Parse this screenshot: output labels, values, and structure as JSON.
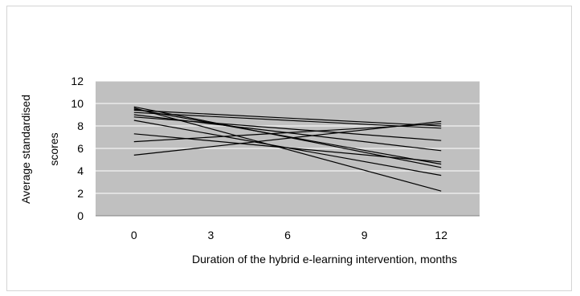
{
  "chart_data": {
    "type": "line",
    "title": "",
    "xlabel": "Duration of the hybrid e-learning intervention, months",
    "ylabel_lines": [
      "Average standardised",
      "scores"
    ],
    "x_ticks": [
      0,
      3,
      6,
      9,
      12
    ],
    "y_ticks": [
      0,
      2,
      4,
      6,
      8,
      10,
      12
    ],
    "xlim": [
      -1.5,
      13.5
    ],
    "ylim": [
      0,
      12
    ],
    "grid": "horizontal",
    "legend": "none",
    "colors": {
      "plot_bg": "#c0c0c0",
      "grid": "#ffffff",
      "line": "#000000"
    },
    "series": [
      {
        "x": [
          0,
          12
        ],
        "y": [
          9.7,
          4.3
        ]
      },
      {
        "x": [
          0,
          12
        ],
        "y": [
          9.6,
          2.2
        ]
      },
      {
        "x": [
          0,
          12
        ],
        "y": [
          9.5,
          4.6
        ]
      },
      {
        "x": [
          0,
          12
        ],
        "y": [
          9.4,
          8.0
        ]
      },
      {
        "x": [
          0,
          12
        ],
        "y": [
          9.2,
          7.8
        ]
      },
      {
        "x": [
          0,
          12
        ],
        "y": [
          9.0,
          5.8
        ]
      },
      {
        "x": [
          0,
          12
        ],
        "y": [
          8.8,
          6.7
        ]
      },
      {
        "x": [
          0,
          12
        ],
        "y": [
          8.5,
          3.6
        ]
      },
      {
        "x": [
          0,
          12
        ],
        "y": [
          7.3,
          4.8
        ]
      },
      {
        "x": [
          0,
          12
        ],
        "y": [
          6.6,
          8.2
        ]
      },
      {
        "x": [
          0,
          12
        ],
        "y": [
          5.4,
          8.4
        ]
      }
    ]
  }
}
